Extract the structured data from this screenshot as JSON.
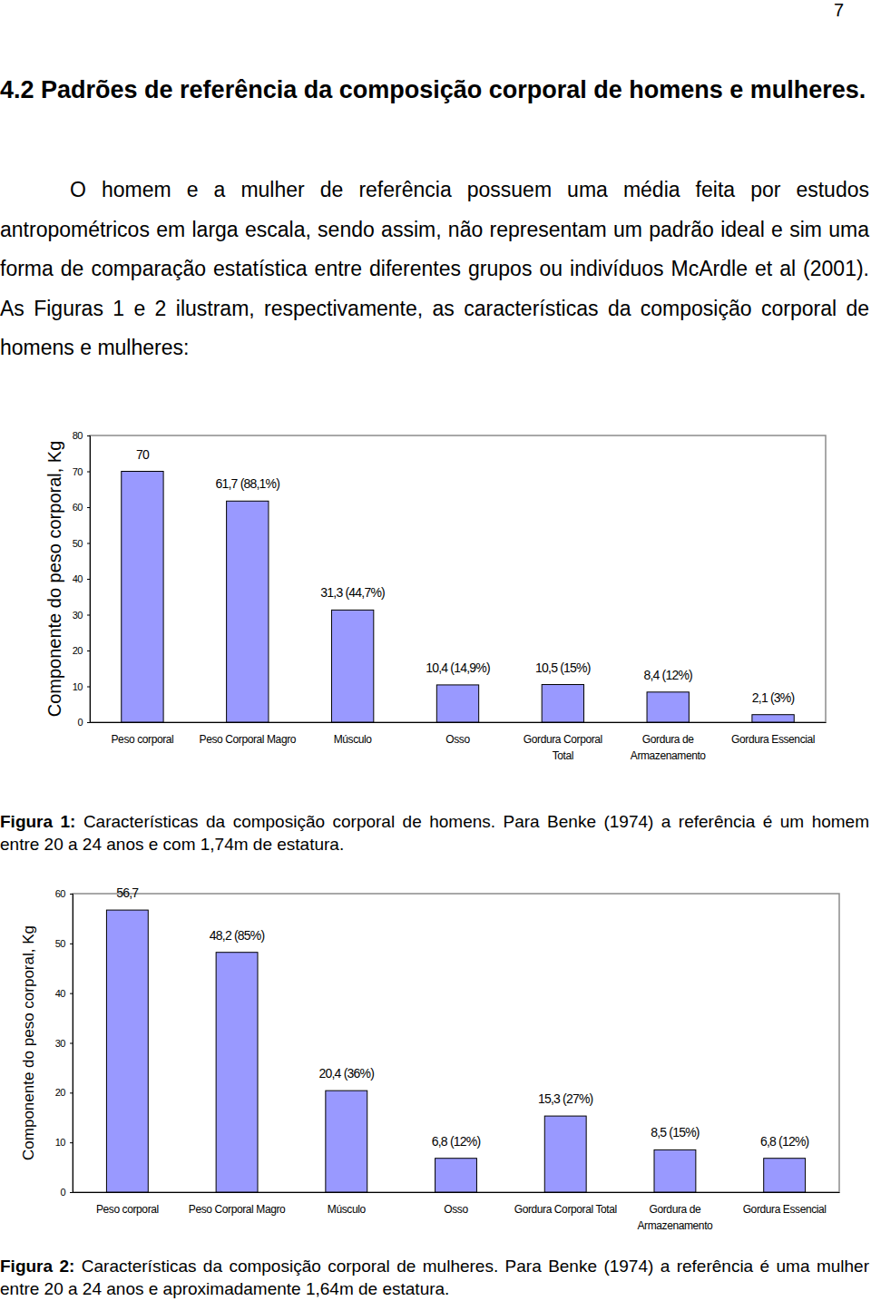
{
  "page_number": "7",
  "heading": "4.2 Padrões de referência da composição corporal de homens e mulheres.",
  "paragraph": "O homem e a mulher de referência possuem uma média feita por estudos antropométricos em larga escala, sendo assim, não representam um padrão ideal e sim uma forma de comparação estatística entre diferentes grupos ou indivíduos McArdle et al (2001). As Figuras 1 e 2 ilustram, respectivamente, as características da composição corporal de homens e mulheres:",
  "chart_data": [
    {
      "type": "bar",
      "ylabel": "Componente do peso corporal, Kg",
      "categories": [
        "Peso corporal",
        "Peso Corporal Magro",
        "Músculo",
        "Osso",
        "Gordura Corporal Total",
        "Gordura de Armazenamento",
        "Gordura Essencial"
      ],
      "values": [
        70,
        61.7,
        31.3,
        10.4,
        10.5,
        8.4,
        2.1
      ],
      "value_labels": [
        "70",
        "61,7 (88,1%)",
        "31,3 (44,7%)",
        "10,4 (14,9%)",
        "10,5 (15%)",
        "8,4 (12%)",
        "2,1 (3%)"
      ],
      "data_labels": true,
      "color": "#9999ff",
      "ylim": [
        0,
        80
      ],
      "yticks": [
        0,
        10,
        20,
        30,
        40,
        50,
        60,
        70,
        80
      ]
    },
    {
      "type": "bar",
      "ylabel": "Componente do peso corporal, Kg",
      "categories": [
        "Peso corporal",
        "Peso Corporal Magro",
        "Músculo",
        "Osso",
        "Gordura Corporal Total",
        "Gordura de Armazenamento",
        "Gordura Essencial"
      ],
      "values": [
        56.7,
        48.2,
        20.4,
        6.8,
        15.3,
        8.5,
        6.8
      ],
      "value_labels": [
        "56,7",
        "48,2 (85%)",
        "20,4 (36%)",
        "6,8 (12%)",
        "15,3 (27%)",
        "8,5 (15%)",
        "6,8 (12%)"
      ],
      "data_labels": true,
      "color": "#9999ff",
      "ylim": [
        0,
        60
      ],
      "yticks": [
        0,
        10,
        20,
        30,
        40,
        50,
        60
      ]
    }
  ],
  "captions": [
    {
      "label": "Figura 1:",
      "text": "Características da composição corporal de homens. Para Benke (1974) a referência é um homem entre 20 a 24 anos e com 1,74m de estatura."
    },
    {
      "label": "Figura 2:",
      "text": "Características da composição corporal de mulheres. Para Benke (1974) a referência é uma mulher entre 20 a 24 anos e aproximadamente 1,64m de estatura."
    }
  ]
}
